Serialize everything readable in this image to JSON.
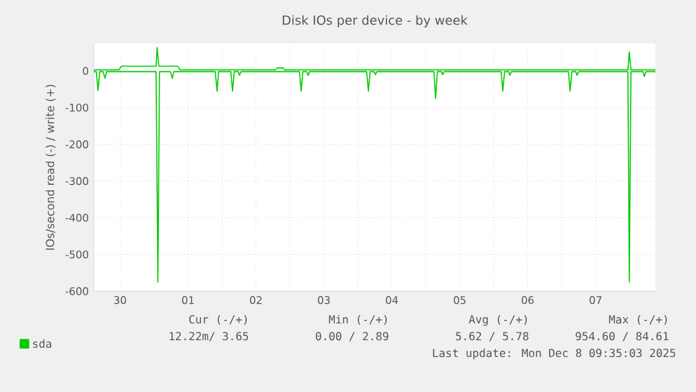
{
  "chart_data": {
    "type": "line",
    "title": "Disk IOs per device - by week",
    "ylabel": "IOs/second read (-) / write (+)",
    "xlim": [
      "2025-11-30T02:43",
      "2025-12-08T09:07"
    ],
    "ylim": [
      -600,
      75
    ],
    "xticks": [
      {
        "value": "2025-11-30T12:00",
        "label": "30"
      },
      {
        "value": "2025-12-01",
        "label": null
      },
      {
        "value": "2025-12-01T12:00",
        "label": "01"
      },
      {
        "value": "2025-12-02",
        "label": null
      },
      {
        "value": "2025-12-02T12:00",
        "label": "02"
      },
      {
        "value": "2025-12-03",
        "label": null
      },
      {
        "value": "2025-12-03T12:00",
        "label": "03"
      },
      {
        "value": "2025-12-04",
        "label": null
      },
      {
        "value": "2025-12-04T12:00",
        "label": "04"
      },
      {
        "value": "2025-12-05",
        "label": null
      },
      {
        "value": "2025-12-05T12:00",
        "label": "05"
      },
      {
        "value": "2025-12-06",
        "label": null
      },
      {
        "value": "2025-12-06T12:00",
        "label": "06"
      },
      {
        "value": "2025-12-07",
        "label": null
      },
      {
        "value": "2025-12-07T12:00",
        "label": "07"
      },
      {
        "value": "2025-12-08",
        "label": null
      }
    ],
    "yticks": [
      -600,
      -500,
      -400,
      -300,
      -200,
      -100,
      0
    ],
    "grid": true,
    "legend": "bottom left",
    "marker": "none",
    "line_style": "solid",
    "series": [
      {
        "name": "sda",
        "color": "#00cc00",
        "x": [
          "2025-11-30T02:43",
          "2025-11-30T03:36",
          "2025-11-30T04:12",
          "2025-11-30T04:48",
          "2025-11-30T06:00",
          "2025-11-30T06:40",
          "2025-11-30T07:12",
          "2025-12-01T00:43",
          "2025-12-01T01:21",
          "2025-12-01T01:55",
          "2025-12-01T05:46",
          "2025-12-01T06:26",
          "2025-12-01T06:58",
          "2025-12-01T21:36",
          "2025-12-01T22:16",
          "2025-12-01T22:48",
          "2025-12-02T03:07",
          "2025-12-02T03:43",
          "2025-12-02T04:19",
          "2025-12-02T05:46",
          "2025-12-02T06:12",
          "2025-12-02T06:43",
          "2025-12-03T03:22",
          "2025-12-03T03:58",
          "2025-12-03T04:34",
          "2025-12-03T06:00",
          "2025-12-03T06:26",
          "2025-12-03T06:58",
          "2025-12-04T03:07",
          "2025-12-04T03:43",
          "2025-12-04T04:19",
          "2025-12-04T05:46",
          "2025-12-04T06:12",
          "2025-12-04T06:43",
          "2025-12-05T02:53",
          "2025-12-05T03:27",
          "2025-12-05T04:05",
          "2025-12-05T05:31",
          "2025-12-05T05:56",
          "2025-12-05T06:29",
          "2025-12-06T02:38",
          "2025-12-06T03:13",
          "2025-12-06T03:50",
          "2025-12-06T05:17",
          "2025-12-06T05:41",
          "2025-12-06T06:14",
          "2025-12-07T02:24",
          "2025-12-07T02:59",
          "2025-12-07T03:36",
          "2025-12-07T05:02",
          "2025-12-07T05:27",
          "2025-12-07T06:00",
          "2025-12-07T23:24",
          "2025-12-07T23:54",
          "2025-12-08T00:29",
          "2025-12-08T04:48",
          "2025-12-08T05:11",
          "2025-12-08T05:46",
          "2025-12-08T09:07"
        ],
        "values": [
          -2,
          -2,
          -53,
          -2,
          -2,
          -20,
          -2,
          -2,
          -575,
          -2,
          -2,
          -20,
          -2,
          -2,
          -55,
          -2,
          -2,
          -55,
          -2,
          -2,
          -12,
          -2,
          -2,
          -55,
          -2,
          -2,
          -12,
          -2,
          -2,
          -55,
          -2,
          -2,
          -10,
          -2,
          -2,
          -75,
          -2,
          -2,
          -10,
          -2,
          -2,
          -55,
          -2,
          -2,
          -12,
          -2,
          -2,
          -55,
          -2,
          -2,
          -12,
          -2,
          -2,
          -575,
          -2,
          -2,
          -15,
          -2,
          -2
        ]
      },
      {
        "color": "#00cc00",
        "x": [
          "2025-11-30T02:43",
          "2025-11-30T11:31",
          "2025-11-30T12:29",
          "2025-12-01T00:43",
          "2025-12-01T01:05",
          "2025-12-01T01:41",
          "2025-12-01T08:24",
          "2025-12-01T09:07",
          "2025-12-02T18:58",
          "2025-12-02T19:26",
          "2025-12-02T21:36",
          "2025-12-02T22:05",
          "2025-12-07T23:24",
          "2025-12-07T23:54",
          "2025-12-08T00:29",
          "2025-12-08T09:07"
        ],
        "values": [
          3,
          3,
          13,
          13,
          64,
          13,
          13,
          3,
          3,
          8,
          8,
          3,
          3,
          52,
          3,
          3
        ]
      }
    ],
    "annotations": [
      "Cur (-/+)",
      "Min (-/+)",
      "Avg (-/+)",
      "Max (-/+)",
      "12.22m/  3.65",
      "0.00 /  2.89",
      "5.62 /  5.78",
      "954.60 / 84.61",
      "Last update:  Mon Dec  8 09:35:03 2025"
    ]
  }
}
